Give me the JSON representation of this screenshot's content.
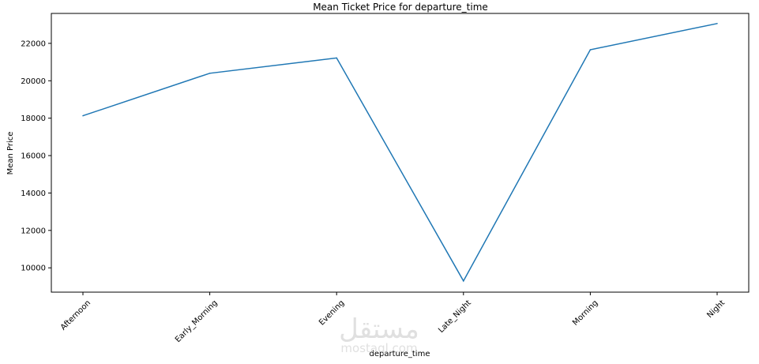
{
  "chart_data": {
    "type": "line",
    "title": "Mean Ticket Price for departure_time",
    "xlabel": "departure_time",
    "ylabel": "Mean Price",
    "categories": [
      "Afternoon",
      "Early_Morning",
      "Evening",
      "Late_Night",
      "Morning",
      "Night"
    ],
    "series": [
      {
        "values": [
          18130,
          20400,
          21220,
          9300,
          21660,
          23060
        ]
      }
    ],
    "ylim": [
      8700,
      23600
    ],
    "yticks": [
      10000,
      12000,
      14000,
      16000,
      18000,
      20000,
      22000
    ],
    "ytick_labels": [
      "10000",
      "12000",
      "14000",
      "16000",
      "18000",
      "20000",
      "22000"
    ],
    "grid": false,
    "line_color": "#1f77b4"
  },
  "watermark": {
    "arabic": "مستقل",
    "latin": "mostaql.com"
  }
}
